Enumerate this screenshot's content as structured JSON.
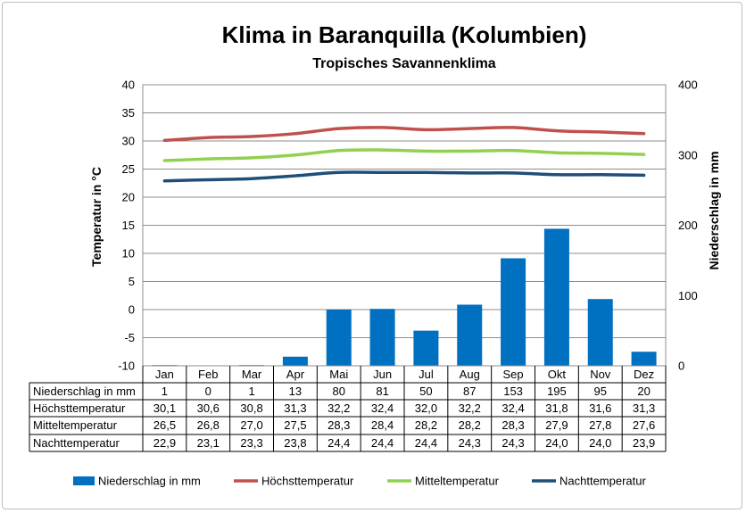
{
  "chart_data": {
    "type": "bar",
    "title": "Klima in Baranquilla (Kolumbien)",
    "subtitle": "Tropisches Savannenklima",
    "ylabel": "Temperatur in °C",
    "y2label": "Niederschlag in mm",
    "ylim": [
      -10,
      40
    ],
    "y2lim": [
      0,
      400
    ],
    "yticks": [
      "40",
      "35",
      "30",
      "25",
      "20",
      "15",
      "10",
      "5",
      "0",
      "-5",
      "-10"
    ],
    "y2ticks": [
      "400",
      "300",
      "200",
      "100",
      "0"
    ],
    "grid": true,
    "legend_position": "bottom",
    "categories": [
      "Jan",
      "Feb",
      "Mar",
      "Apr",
      "Mai",
      "Jun",
      "Jul",
      "Aug",
      "Sep",
      "Okt",
      "Nov",
      "Dez"
    ],
    "series": [
      {
        "name": "Niederschlag in mm",
        "kind": "bar",
        "axis": "right",
        "color": "#0070c0",
        "values": [
          1,
          0,
          1,
          13,
          80,
          81,
          50,
          87,
          153,
          195,
          95,
          20
        ],
        "labels": [
          "1",
          "0",
          "1",
          "13",
          "80",
          "81",
          "50",
          "87",
          "153",
          "195",
          "95",
          "20"
        ]
      },
      {
        "name": "Höchsttemperatur",
        "kind": "line",
        "axis": "left",
        "color": "#c0504d",
        "values": [
          30.1,
          30.6,
          30.8,
          31.3,
          32.2,
          32.4,
          32.0,
          32.2,
          32.4,
          31.8,
          31.6,
          31.3
        ],
        "labels": [
          "30,1",
          "30,6",
          "30,8",
          "31,3",
          "32,2",
          "32,4",
          "32,0",
          "32,2",
          "32,4",
          "31,8",
          "31,6",
          "31,3"
        ]
      },
      {
        "name": "Mitteltemperatur",
        "kind": "line",
        "axis": "left",
        "color": "#92d050",
        "values": [
          26.5,
          26.8,
          27.0,
          27.5,
          28.3,
          28.4,
          28.2,
          28.2,
          28.3,
          27.9,
          27.8,
          27.6
        ],
        "labels": [
          "26,5",
          "26,8",
          "27,0",
          "27,5",
          "28,3",
          "28,4",
          "28,2",
          "28,2",
          "28,3",
          "27,9",
          "27,8",
          "27,6"
        ]
      },
      {
        "name": "Nachttemperatur",
        "kind": "line",
        "axis": "left",
        "color": "#1f4e79",
        "values": [
          22.9,
          23.1,
          23.3,
          23.8,
          24.4,
          24.4,
          24.4,
          24.3,
          24.3,
          24.0,
          24.0,
          23.9
        ],
        "labels": [
          "22,9",
          "23,1",
          "23,3",
          "23,8",
          "24,4",
          "24,4",
          "24,4",
          "24,3",
          "24,3",
          "24,0",
          "24,0",
          "23,9"
        ]
      }
    ]
  }
}
